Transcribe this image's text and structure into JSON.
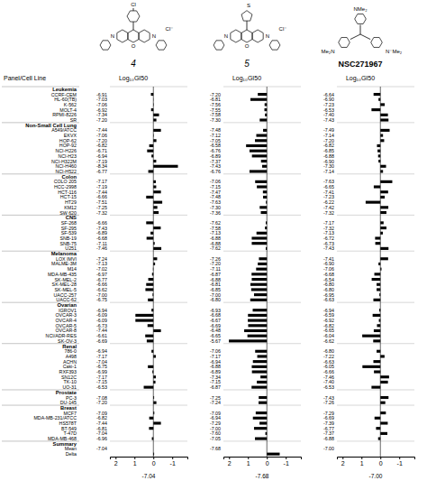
{
  "chart_data": {
    "type": "bar",
    "orientation": "horizontal",
    "y_label": "Panel/Cell Line",
    "x_label": "Log₁₀GI50",
    "color": "#000000",
    "xlim": [
      2.3,
      -1.8
    ],
    "xticks": [
      2,
      1,
      0,
      -1
    ],
    "categories": [
      "CCRF-CEM",
      "HL-60(TB)",
      "K-562",
      "MOLT-4",
      "RPMI-8226",
      "SR",
      "A549/ATCC",
      "EKVX",
      "HOP-62",
      "HOP-92",
      "NCI-H226",
      "NCI-H23",
      "NCI-H322M",
      "NCI-H460",
      "NCI-H522",
      "COLO 205",
      "HCC-2998",
      "HCT-116",
      "HCT-15",
      "HT29",
      "KM12",
      "SW 620",
      "SF-268",
      "SF-295",
      "SF-539",
      "SNB-19",
      "SNB-75",
      "U251",
      "LOX IMVI",
      "MALME-3M",
      "M14",
      "MDA-MB-435",
      "SK-MEL-2",
      "SK-MEL-28",
      "SK-MEL-5",
      "UACC-257",
      "UACC-62",
      "IGROV1",
      "OVCAR-3",
      "OVCAR-4",
      "OVCAR-5",
      "OVCAR-8",
      "NCI/ADR-RES",
      "SK-OV-3",
      "786-0",
      "A498",
      "ACHN",
      "Caki-1",
      "RXF393",
      "SN12C",
      "TK-10",
      "UO-31",
      "PC-3",
      "DU-145",
      "MCF7",
      "MDA-MB-231/ATCC",
      "HS578T",
      "BT-549",
      "T-47D",
      "MDA-MB-468",
      "Mean",
      "Delta"
    ],
    "panels": [
      "Leukemia",
      "Leukemia",
      "Leukemia",
      "Leukemia",
      "Leukemia",
      "Leukemia",
      "Non-Small Cell Lung",
      "Non-Small Cell Lung",
      "Non-Small Cell Lung",
      "Non-Small Cell Lung",
      "Non-Small Cell Lung",
      "Non-Small Cell Lung",
      "Non-Small Cell Lung",
      "Non-Small Cell Lung",
      "Non-Small Cell Lung",
      "Colon",
      "Colon",
      "Colon",
      "Colon",
      "Colon",
      "Colon",
      "Colon",
      "CNS",
      "CNS",
      "CNS",
      "CNS",
      "CNS",
      "CNS",
      "Melanoma",
      "Melanoma",
      "Melanoma",
      "Melanoma",
      "Melanoma",
      "Melanoma",
      "Melanoma",
      "Melanoma",
      "Melanoma",
      "Ovarian",
      "Ovarian",
      "Ovarian",
      "Ovarian",
      "Ovarian",
      "Ovarian",
      "Ovarian",
      "Renal",
      "Renal",
      "Renal",
      "Renal",
      "Renal",
      "Renal",
      "Renal",
      "Renal",
      "Prostate",
      "Prostate",
      "Breast",
      "Breast",
      "Breast",
      "Breast",
      "Breast",
      "Breast",
      "Summary",
      "Summary"
    ],
    "series": [
      {
        "name": "4",
        "mean": -7.04,
        "values": [
          0.13,
          0.01,
          -0.02,
          0.12,
          -0.3,
          -0.16,
          -0.4,
          -0.02,
          -0.16,
          0.22,
          0.33,
          0.1,
          -0.15,
          -1.3,
          0.27,
          -0.13,
          -0.15,
          -0.4,
          0.38,
          -0.47,
          -0.21,
          -0.28,
          0.38,
          -0.39,
          0.15,
          0.36,
          -0.07,
          -0.42,
          -0.2,
          -0.09,
          0.02,
          0.07,
          0.27,
          0.38,
          0.42,
          0.04,
          0.29,
          0.1,
          0.95,
          0.95,
          0.31,
          -0.4,
          0.43,
          0.35,
          0.1,
          -0.13,
          0,
          0.29,
          0.05,
          -0.13,
          -0.11,
          0.51,
          -0.04,
          -0.16,
          -0.05,
          0.22,
          -0.4,
          0.23,
          0,
          0.08,
          0,
          -0.04
        ],
        "log_gi50": [
          -6.91,
          -7.03,
          -7.06,
          -6.92,
          -7.34,
          -7.2,
          -7.44,
          -7.06,
          -7.2,
          -6.82,
          -6.71,
          -6.94,
          -7.19,
          -8.34,
          -6.77,
          -7.17,
          -7.19,
          -7.44,
          -6.66,
          -7.51,
          -7.25,
          -7.32,
          -6.66,
          -7.43,
          -6.89,
          -6.68,
          -7.11,
          -7.46,
          -7.24,
          -7.13,
          -7.02,
          -6.97,
          -6.77,
          -6.66,
          -6.62,
          -7.0,
          -6.75,
          -6.94,
          -6.09,
          -6.09,
          -6.73,
          -7.44,
          -6.61,
          -6.69,
          -6.94,
          -7.17,
          -7.04,
          -6.75,
          -6.99,
          -7.17,
          -7.15,
          -6.53,
          -7.08,
          -7.2,
          -7.09,
          -6.82,
          -7.44,
          -6.81,
          -7.04,
          -6.96,
          -7.04,
          null
        ]
      },
      {
        "name": "5",
        "mean": -7.68,
        "values": [
          0.48,
          0.87,
          0.12,
          0.13,
          0.1,
          0.38,
          0.2,
          0.56,
          0.63,
          1.1,
          0.92,
          0.79,
          0.31,
          0.25,
          0.92,
          0.62,
          0.53,
          0.21,
          0.2,
          0.05,
          0.38,
          0.32,
          0.06,
          0.1,
          0.55,
          0.8,
          0.8,
          0.06,
          0.42,
          0.48,
          0.57,
          0.81,
          0.8,
          0.87,
          0.83,
          0.68,
          0.88,
          0.75,
          1.0,
          1.01,
          0.99,
          1.2,
          1.03,
          2.01,
          0.62,
          0.51,
          0.74,
          0.8,
          0.79,
          0.34,
          0.53,
          0.81,
          0.43,
          0.44,
          0.59,
          0.74,
          0.39,
          0.68,
          0.08,
          0.63,
          0,
          -0.68
        ],
        "log_gi50": [
          -7.2,
          -6.81,
          -7.56,
          -7.55,
          -7.58,
          -7.3,
          -7.48,
          -7.12,
          -7.05,
          -6.58,
          -6.76,
          -6.89,
          -7.37,
          -7.43,
          -6.76,
          -7.06,
          -7.15,
          -7.47,
          -7.48,
          -7.63,
          -7.3,
          -7.36,
          -7.62,
          -7.58,
          -7.13,
          -6.88,
          -6.88,
          -7.62,
          -7.26,
          -7.2,
          -7.11,
          -6.87,
          -6.88,
          -6.81,
          -6.85,
          -7.0,
          -6.8,
          -6.93,
          -6.68,
          -6.67,
          -6.69,
          -6.48,
          -6.65,
          -5.67,
          -7.06,
          -7.17,
          -6.94,
          -6.88,
          -6.89,
          -7.34,
          -7.15,
          -6.87,
          -7.25,
          -7.24,
          -7.09,
          -6.94,
          -7.29,
          -7.0,
          -7.6,
          -7.05,
          -7.68,
          null
        ]
      },
      {
        "name": "NSC271967",
        "mean": -7.0,
        "values": [
          0.36,
          0.1,
          -0.23,
          0.47,
          -0.4,
          -0.43,
          -0.49,
          -0.14,
          -0.2,
          0.18,
          0.15,
          0.12,
          0.1,
          -0.3,
          -0.14,
          -0.63,
          0.35,
          -0.41,
          -0.23,
          0.78,
          -0.42,
          -0.32,
          -0.17,
          -0.32,
          -0.13,
          0.28,
          0.27,
          -0.43,
          -0.41,
          0.1,
          -0.06,
          0.32,
          0.46,
          0.2,
          0.2,
          0.05,
          0.37,
          0.06,
          0.41,
          0.08,
          0.18,
          0.35,
          0.96,
          0.38,
          0.2,
          -0.22,
          0.37,
          0.95,
          0.34,
          -0.46,
          -0.4,
          0.47,
          -0.43,
          -0.26,
          -0.29,
          0.31,
          -0.39,
          0.23,
          -0.37,
          0.12,
          0,
          0
        ],
        "log_gi50": [
          -6.64,
          -6.9,
          -7.23,
          -6.53,
          -7.4,
          -7.43,
          -7.49,
          -7.14,
          -7.2,
          -6.82,
          -6.85,
          -6.88,
          -6.9,
          -7.3,
          -7.14,
          -7.63,
          -6.65,
          -7.41,
          -7.23,
          -6.22,
          -7.42,
          -7.32,
          -7.17,
          -7.32,
          -7.13,
          -6.72,
          -6.73,
          -7.43,
          -7.41,
          -6.9,
          -7.06,
          -6.68,
          -6.54,
          -6.8,
          -6.8,
          -6.95,
          -6.63,
          -6.94,
          -6.59,
          -6.92,
          -6.82,
          -6.65,
          -6.04,
          -6.62,
          -6.8,
          -7.22,
          -6.63,
          -6.05,
          -6.66,
          -7.46,
          -7.4,
          -6.53,
          -7.43,
          -7.26,
          -7.29,
          -6.69,
          -7.39,
          -6.77,
          -7.37,
          -6.88,
          -7.0,
          null
        ]
      }
    ],
    "annotations": [
      "Cl",
      "O",
      "N",
      "N",
      "Cl⁻",
      "S",
      "O",
      "N",
      "N",
      "Cl⁻",
      "NMe₂",
      "Me₂N",
      "N⁻Me₂"
    ]
  }
}
